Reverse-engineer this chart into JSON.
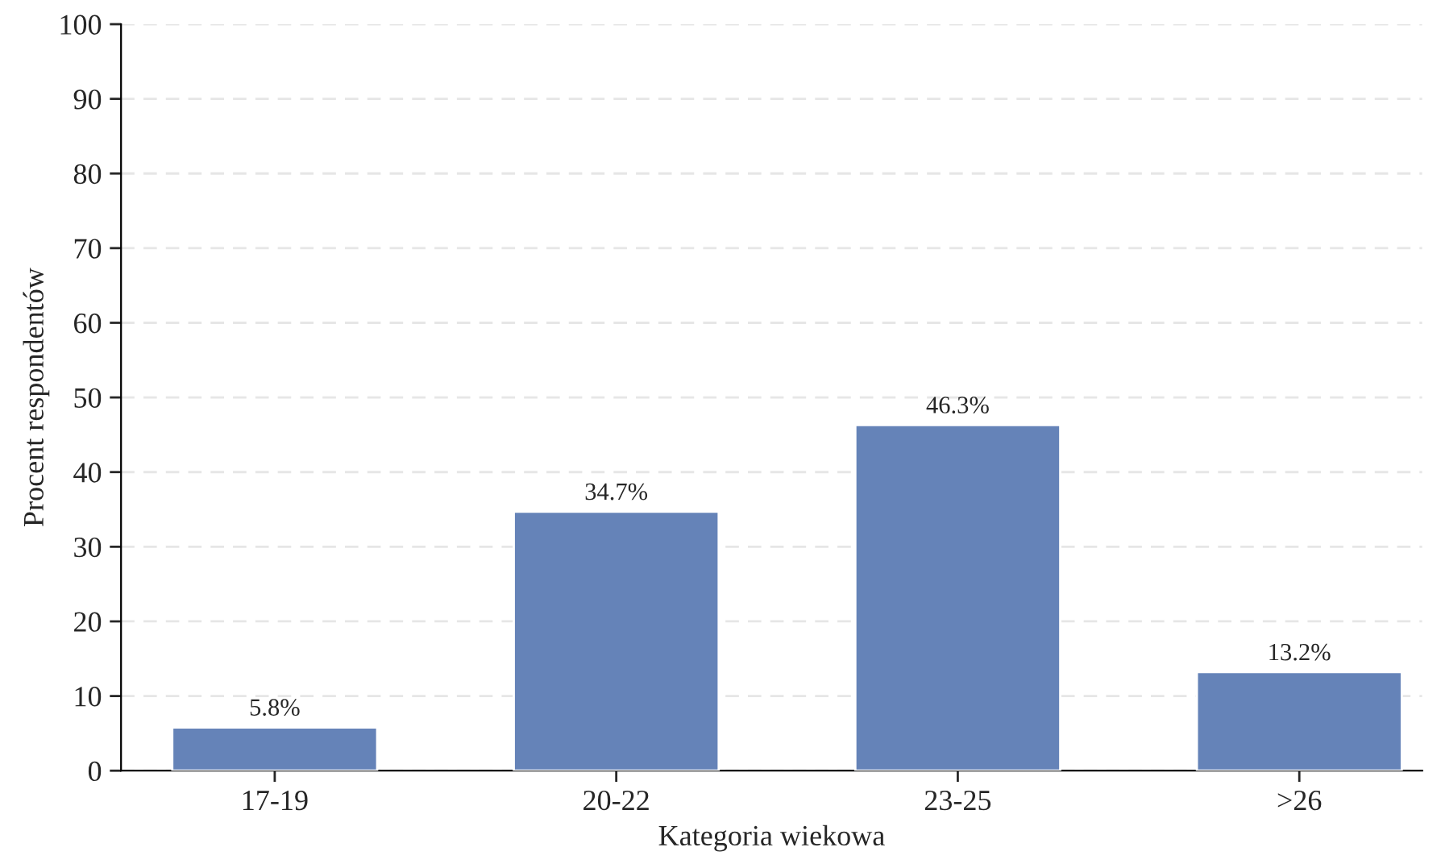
{
  "chart_data": {
    "type": "bar",
    "xlabel": "Kategoria wiekowa",
    "ylabel": "Procent respondentów",
    "categories": [
      "17-19",
      "20-22",
      "23-25",
      ">26"
    ],
    "values": [
      5.8,
      34.7,
      46.3,
      13.2
    ],
    "value_labels": [
      "5.8%",
      "34.7%",
      "46.3%",
      "13.2%"
    ],
    "color": "#6583b8",
    "ylim": [
      0,
      100
    ],
    "yticks": [
      0,
      10,
      20,
      30,
      40,
      50,
      60,
      70,
      80,
      90,
      100
    ],
    "grid": "y",
    "legend": false
  }
}
